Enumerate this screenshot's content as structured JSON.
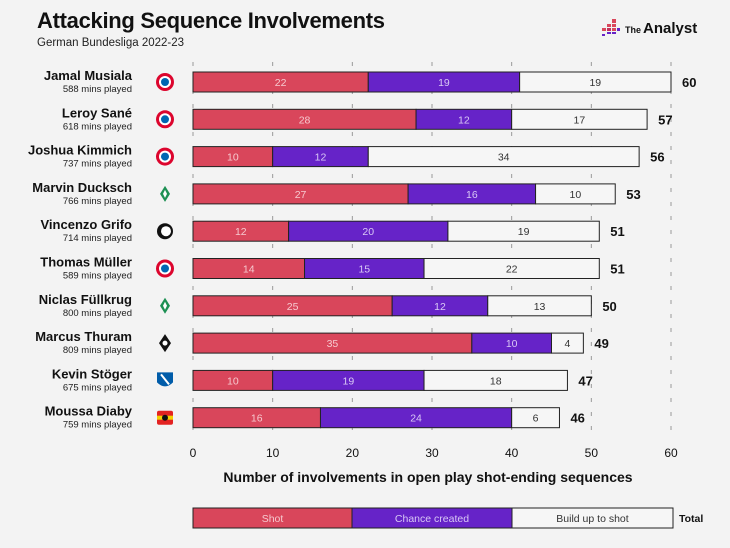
{
  "header": {
    "title": "Attacking Sequence Involvements",
    "subtitle": "German Bundesliga 2022-23",
    "logo_prefix": "The",
    "logo_main": "Analyst"
  },
  "colors": {
    "shot": "#d9465b",
    "chance": "#6623c8",
    "build": "#f6f6f6",
    "outline": "#222222"
  },
  "chart_data": {
    "type": "bar",
    "stacked": true,
    "orientation": "horizontal",
    "title": "Attacking Sequence Involvements",
    "xlabel": "Number of involvements in open play shot-ending sequences",
    "xlim": [
      0,
      60
    ],
    "xticks": [
      0,
      10,
      20,
      30,
      40,
      50,
      60
    ],
    "categories": [
      {
        "name": "Jamal Musiala",
        "mins": "588 mins played",
        "club": "bayern"
      },
      {
        "name": "Leroy Sané",
        "mins": "618 mins played",
        "club": "bayern"
      },
      {
        "name": "Joshua Kimmich",
        "mins": "737 mins played",
        "club": "bayern"
      },
      {
        "name": "Marvin Ducksch",
        "mins": "766 mins played",
        "club": "werder"
      },
      {
        "name": "Vincenzo Grifo",
        "mins": "714 mins played",
        "club": "freiburg"
      },
      {
        "name": "Thomas Müller",
        "mins": "589 mins played",
        "club": "bayern"
      },
      {
        "name": "Niclas Füllkrug",
        "mins": "800 mins played",
        "club": "werder"
      },
      {
        "name": "Marcus Thuram",
        "mins": "809 mins played",
        "club": "gladbach"
      },
      {
        "name": "Kevin Stöger",
        "mins": "675 mins played",
        "club": "bochum"
      },
      {
        "name": "Moussa Diaby",
        "mins": "759 mins played",
        "club": "leverkusen"
      }
    ],
    "series": [
      {
        "name": "Shot",
        "values": [
          22,
          28,
          10,
          27,
          12,
          14,
          25,
          35,
          10,
          16
        ]
      },
      {
        "name": "Chance created",
        "values": [
          19,
          12,
          12,
          16,
          20,
          15,
          12,
          10,
          19,
          24
        ]
      },
      {
        "name": "Build up to shot",
        "values": [
          19,
          17,
          34,
          10,
          19,
          22,
          13,
          4,
          18,
          6
        ]
      }
    ],
    "totals": [
      60,
      57,
      56,
      53,
      51,
      51,
      50,
      49,
      47,
      46
    ],
    "legend": {
      "items": [
        "Shot",
        "Chance created",
        "Build up to shot"
      ],
      "total_label": "Total",
      "placement": "bottom"
    },
    "grid": true
  }
}
